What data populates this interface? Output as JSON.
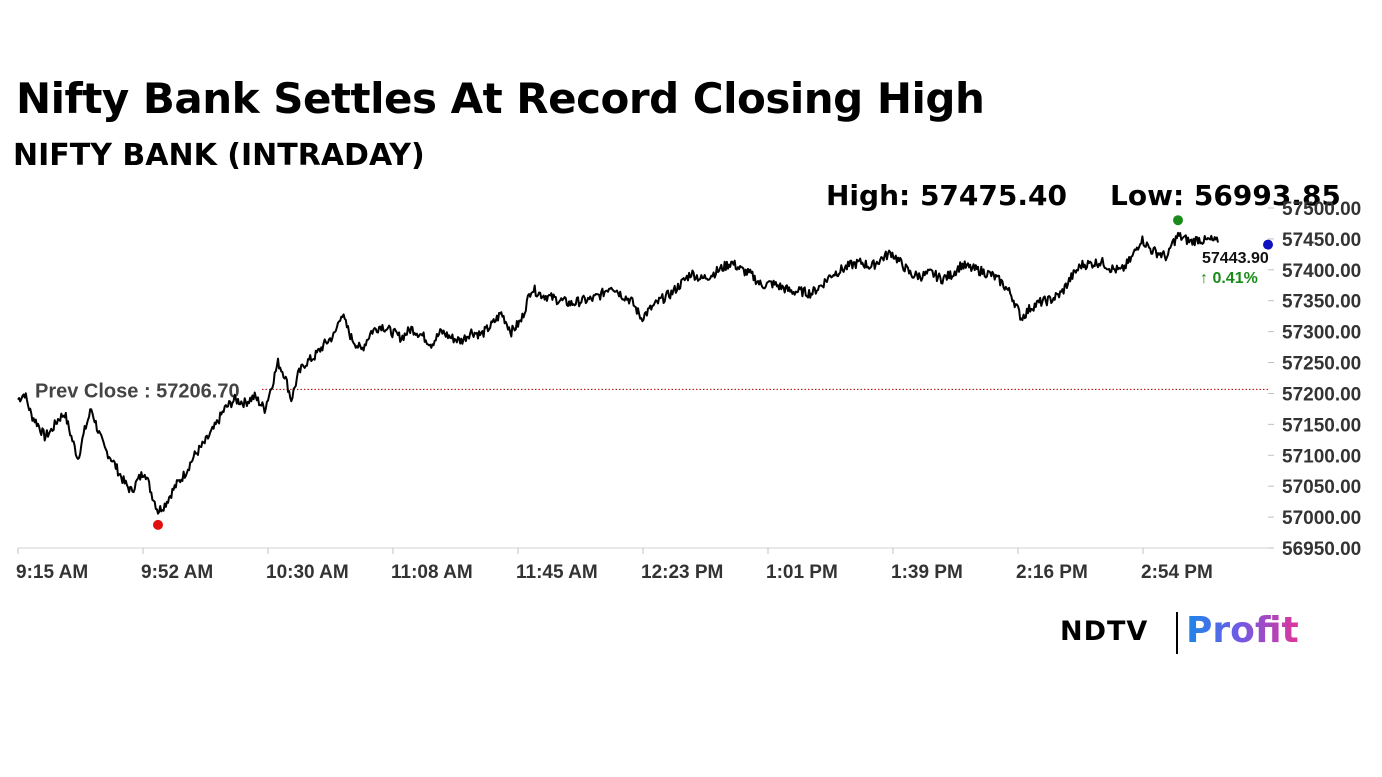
{
  "headline": "Nifty Bank Settles At Record Closing High",
  "subtitle": "NIFTY BANK (INTRADAY)",
  "high_label": "High: 57475.40",
  "low_label": "Low: 56993.85",
  "logo": {
    "left": "NDTV",
    "right": "Profit"
  },
  "colors": {
    "line": "#000000",
    "high_marker": "#1a8a1a",
    "low_marker": "#e01010",
    "last_marker": "#1010c0",
    "prev_close": "#b00000",
    "change_up": "#1a8a1a"
  },
  "chart_data": {
    "type": "line",
    "xlabels": [
      "9:15 AM",
      "9:52 AM",
      "10:30 AM",
      "11:08 AM",
      "11:45 AM",
      "12:23 PM",
      "1:01 PM",
      "1:39 PM",
      "2:16 PM",
      "2:54 PM"
    ],
    "ylabels": [
      "57500.00",
      "57450.00",
      "57400.00",
      "57350.00",
      "57300.00",
      "57250.00",
      "57200.00",
      "57150.00",
      "57100.00",
      "57050.00",
      "57000.00",
      "56950.00"
    ],
    "ylim": [
      56950,
      57500
    ],
    "prev_close": 57206.7,
    "prev_close_label": "Prev Close : 57206.70",
    "last_value_label": "57443.90",
    "change_label": "↑ 0.41%",
    "high": 57475.4,
    "low": 56993.85,
    "points": [
      [
        "9:15",
        57190
      ],
      [
        "9:17",
        57200
      ],
      [
        "9:19",
        57165
      ],
      [
        "9:21",
        57150
      ],
      [
        "9:23",
        57130
      ],
      [
        "9:25",
        57140
      ],
      [
        "9:27",
        57158
      ],
      [
        "9:29",
        57168
      ],
      [
        "9:31",
        57130
      ],
      [
        "9:33",
        57095
      ],
      [
        "9:35",
        57140
      ],
      [
        "9:37",
        57175
      ],
      [
        "9:39",
        57140
      ],
      [
        "9:41",
        57110
      ],
      [
        "9:43",
        57095
      ],
      [
        "9:45",
        57075
      ],
      [
        "9:47",
        57055
      ],
      [
        "9:49",
        57042
      ],
      [
        "9:51",
        57060
      ],
      [
        "9:53",
        57075
      ],
      [
        "9:55",
        57040
      ],
      [
        "9:57",
        57010
      ],
      [
        "9:59",
        57020
      ],
      [
        "10:02",
        57048
      ],
      [
        "10:05",
        57070
      ],
      [
        "10:08",
        57100
      ],
      [
        "10:11",
        57120
      ],
      [
        "10:14",
        57145
      ],
      [
        "10:17",
        57175
      ],
      [
        "10:20",
        57190
      ],
      [
        "10:23",
        57185
      ],
      [
        "10:26",
        57195
      ],
      [
        "10:29",
        57175
      ],
      [
        "10:31",
        57210
      ],
      [
        "10:33",
        57250
      ],
      [
        "10:35",
        57230
      ],
      [
        "10:37",
        57190
      ],
      [
        "10:39",
        57230
      ],
      [
        "10:41",
        57248
      ],
      [
        "10:44",
        57260
      ],
      [
        "10:47",
        57280
      ],
      [
        "10:50",
        57295
      ],
      [
        "10:52",
        57330
      ],
      [
        "10:55",
        57290
      ],
      [
        "10:58",
        57270
      ],
      [
        "11:01",
        57300
      ],
      [
        "11:04",
        57310
      ],
      [
        "11:07",
        57300
      ],
      [
        "11:10",
        57290
      ],
      [
        "11:13",
        57305
      ],
      [
        "11:16",
        57295
      ],
      [
        "11:19",
        57280
      ],
      [
        "11:22",
        57300
      ],
      [
        "11:25",
        57290
      ],
      [
        "11:28",
        57285
      ],
      [
        "11:31",
        57300
      ],
      [
        "11:34",
        57295
      ],
      [
        "11:37",
        57310
      ],
      [
        "11:40",
        57330
      ],
      [
        "11:43",
        57300
      ],
      [
        "11:46",
        57318
      ],
      [
        "11:49",
        57370
      ],
      [
        "11:52",
        57360
      ],
      [
        "11:55",
        57355
      ],
      [
        "11:58",
        57350
      ],
      [
        "12:01",
        57345
      ],
      [
        "12:04",
        57350
      ],
      [
        "12:07",
        57352
      ],
      [
        "12:10",
        57360
      ],
      [
        "12:13",
        57375
      ],
      [
        "12:16",
        57360
      ],
      [
        "12:19",
        57350
      ],
      [
        "12:22",
        57322
      ],
      [
        "12:25",
        57338
      ],
      [
        "12:28",
        57352
      ],
      [
        "12:31",
        57362
      ],
      [
        "12:34",
        57378
      ],
      [
        "12:37",
        57395
      ],
      [
        "12:40",
        57385
      ],
      [
        "12:43",
        57392
      ],
      [
        "12:46",
        57402
      ],
      [
        "12:49",
        57412
      ],
      [
        "12:52",
        57400
      ],
      [
        "12:55",
        57392
      ],
      [
        "12:58",
        57375
      ],
      [
        "13:01",
        57378
      ],
      [
        "13:04",
        57372
      ],
      [
        "13:07",
        57365
      ],
      [
        "13:10",
        57365
      ],
      [
        "13:13",
        57362
      ],
      [
        "13:16",
        57375
      ],
      [
        "13:19",
        57392
      ],
      [
        "13:22",
        57400
      ],
      [
        "13:25",
        57408
      ],
      [
        "13:28",
        57412
      ],
      [
        "13:31",
        57405
      ],
      [
        "13:34",
        57418
      ],
      [
        "13:37",
        57428
      ],
      [
        "13:40",
        57410
      ],
      [
        "13:43",
        57392
      ],
      [
        "13:46",
        57390
      ],
      [
        "13:49",
        57395
      ],
      [
        "13:52",
        57385
      ],
      [
        "13:55",
        57392
      ],
      [
        "13:58",
        57408
      ],
      [
        "14:01",
        57402
      ],
      [
        "14:04",
        57398
      ],
      [
        "14:07",
        57392
      ],
      [
        "14:10",
        57380
      ],
      [
        "14:13",
        57360
      ],
      [
        "14:16",
        57322
      ],
      [
        "14:19",
        57340
      ],
      [
        "14:22",
        57348
      ],
      [
        "14:25",
        57352
      ],
      [
        "14:28",
        57362
      ],
      [
        "14:31",
        57388
      ],
      [
        "14:34",
        57408
      ],
      [
        "14:37",
        57410
      ],
      [
        "14:40",
        57413
      ],
      [
        "14:43",
        57402
      ],
      [
        "14:46",
        57398
      ],
      [
        "14:49",
        57418
      ],
      [
        "14:52",
        57450
      ],
      [
        "14:55",
        57432
      ],
      [
        "14:58",
        57425
      ],
      [
        "15:00",
        57420
      ],
      [
        "15:01",
        57440
      ],
      [
        "15:03",
        57455
      ],
      [
        "15:05",
        57450
      ],
      [
        "15:07",
        57445
      ],
      [
        "15:09",
        57450
      ],
      [
        "15:11",
        57447
      ],
      [
        "15:13",
        57448
      ],
      [
        "15:14",
        57446
      ],
      [
        "15:15",
        57444
      ]
    ]
  }
}
